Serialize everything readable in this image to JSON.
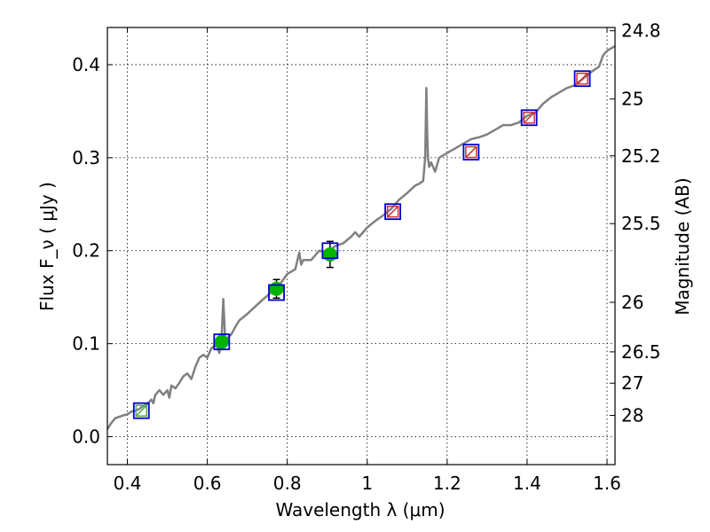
{
  "chart_data": {
    "type": "scatter",
    "xlabel": "Wavelength  λ (μm)",
    "ylabel": "Flux  F_ν  ( μJy )",
    "y2label": "Magnitude (AB)",
    "xlim": [
      0.35,
      1.62
    ],
    "ylim": [
      -0.03,
      0.44
    ],
    "grid": true,
    "x_ticks": [
      {
        "value": 0.4,
        "label": "0.4"
      },
      {
        "value": 0.6,
        "label": "0.6"
      },
      {
        "value": 0.8,
        "label": "0.8"
      },
      {
        "value": 1.0,
        "label": "1"
      },
      {
        "value": 1.2,
        "label": "1.2"
      },
      {
        "value": 1.4,
        "label": "1.4"
      },
      {
        "value": 1.6,
        "label": "1.6"
      }
    ],
    "y_ticks": [
      {
        "value": 0.0,
        "label": "0.0"
      },
      {
        "value": 0.1,
        "label": "0.1"
      },
      {
        "value": 0.2,
        "label": "0.2"
      },
      {
        "value": 0.3,
        "label": "0.3"
      },
      {
        "value": 0.4,
        "label": "0.4"
      }
    ],
    "y2_ticks": [
      {
        "label": "24.8",
        "flux": 0.4365
      },
      {
        "label": "25",
        "flux": 0.3631
      },
      {
        "label": "25.2",
        "flux": 0.302
      },
      {
        "label": "25.5",
        "flux": 0.2291
      },
      {
        "label": "26",
        "flux": 0.1445
      },
      {
        "label": "26.5",
        "flux": 0.0912
      },
      {
        "label": "27",
        "flux": 0.0575
      },
      {
        "label": "28",
        "flux": 0.0229
      }
    ],
    "model_spectrum": {
      "color": "#808080",
      "x": [
        0.35,
        0.36,
        0.37,
        0.39,
        0.4,
        0.41,
        0.42,
        0.43,
        0.44,
        0.45,
        0.46,
        0.465,
        0.47,
        0.48,
        0.49,
        0.5,
        0.505,
        0.51,
        0.52,
        0.53,
        0.54,
        0.55,
        0.56,
        0.57,
        0.58,
        0.59,
        0.6,
        0.61,
        0.62,
        0.625,
        0.63,
        0.635,
        0.64,
        0.645,
        0.65,
        0.66,
        0.67,
        0.68,
        0.7,
        0.72,
        0.74,
        0.76,
        0.78,
        0.8,
        0.82,
        0.83,
        0.835,
        0.84,
        0.86,
        0.88,
        0.9,
        0.92,
        0.94,
        0.96,
        0.97,
        0.98,
        1.0,
        1.02,
        1.04,
        1.06,
        1.08,
        1.1,
        1.12,
        1.13,
        1.14,
        1.145,
        1.148,
        1.15,
        1.152,
        1.155,
        1.16,
        1.17,
        1.18,
        1.2,
        1.22,
        1.24,
        1.26,
        1.28,
        1.3,
        1.32,
        1.34,
        1.36,
        1.38,
        1.4,
        1.42,
        1.44,
        1.46,
        1.48,
        1.5,
        1.52,
        1.54,
        1.56,
        1.58,
        1.59,
        1.6,
        1.62
      ],
      "y": [
        0.008,
        0.015,
        0.02,
        0.023,
        0.024,
        0.027,
        0.028,
        0.03,
        0.033,
        0.035,
        0.04,
        0.036,
        0.045,
        0.05,
        0.045,
        0.05,
        0.042,
        0.055,
        0.052,
        0.058,
        0.065,
        0.068,
        0.062,
        0.075,
        0.085,
        0.088,
        0.085,
        0.095,
        0.098,
        0.096,
        0.09,
        0.1,
        0.148,
        0.1,
        0.106,
        0.11,
        0.118,
        0.125,
        0.132,
        0.14,
        0.148,
        0.155,
        0.163,
        0.175,
        0.18,
        0.198,
        0.185,
        0.19,
        0.19,
        0.2,
        0.198,
        0.205,
        0.208,
        0.215,
        0.22,
        0.215,
        0.225,
        0.232,
        0.238,
        0.245,
        0.255,
        0.262,
        0.27,
        0.272,
        0.275,
        0.3,
        0.375,
        0.33,
        0.3,
        0.29,
        0.295,
        0.285,
        0.3,
        0.305,
        0.31,
        0.315,
        0.32,
        0.322,
        0.325,
        0.33,
        0.335,
        0.335,
        0.338,
        0.345,
        0.348,
        0.358,
        0.365,
        0.37,
        0.375,
        0.378,
        0.385,
        0.392,
        0.398,
        0.41,
        0.415,
        0.42
      ]
    },
    "observed_points": {
      "color": "#00b400",
      "points": [
        {
          "x": 0.636,
          "y": 0.102,
          "err": 0.008
        },
        {
          "x": 0.773,
          "y": 0.159,
          "err": 0.01
        },
        {
          "x": 0.907,
          "y": 0.196,
          "err": 0.014
        }
      ]
    },
    "model_photometry": {
      "color": "#0000cc",
      "points": [
        {
          "x": 0.435,
          "y": 0.028
        },
        {
          "x": 0.636,
          "y": 0.102
        },
        {
          "x": 0.773,
          "y": 0.155
        },
        {
          "x": 0.907,
          "y": 0.2
        },
        {
          "x": 1.064,
          "y": 0.242
        },
        {
          "x": 1.26,
          "y": 0.306
        },
        {
          "x": 1.405,
          "y": 0.343
        },
        {
          "x": 1.538,
          "y": 0.385
        }
      ]
    },
    "inner_markers": [
      {
        "x": 0.435,
        "y": 0.028,
        "color": "#55aa55"
      },
      {
        "x": 1.064,
        "y": 0.242,
        "color": "#cc3333"
      },
      {
        "x": 1.26,
        "y": 0.306,
        "color": "#cc3333"
      },
      {
        "x": 1.405,
        "y": 0.343,
        "color": "#cc3333"
      },
      {
        "x": 1.538,
        "y": 0.385,
        "color": "#cc3333"
      }
    ]
  }
}
